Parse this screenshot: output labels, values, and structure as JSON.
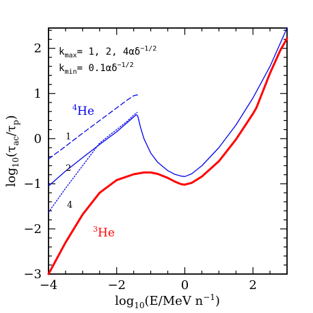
{
  "chart_data": {
    "type": "line",
    "xlabel": "log₁₀(E/MeV n⁻¹)",
    "ylabel": "log₁₀(τ_ac/τ_p)",
    "xlim": [
      -4,
      3
    ],
    "ylim": [
      -3,
      2.45
    ],
    "xticks": [
      -4,
      -2,
      0,
      2
    ],
    "yticks": [
      -3,
      -2,
      -1,
      0,
      1,
      2
    ],
    "xtick_labels": [
      "−4",
      "−2",
      "0",
      "2"
    ],
    "ytick_labels": [
      "−3",
      "−2",
      "−1",
      "0",
      "1",
      "2"
    ],
    "annotations": {
      "kmax": "k_max= 1, 2, 4αδ^{−1/2}",
      "kmin": "k_min= 0.1αδ^{−1/2}",
      "he4": "⁴He",
      "he3": "³He",
      "label_1": "1",
      "label_2": "2",
      "label_4": "4"
    },
    "series": [
      {
        "id": "he4_k1",
        "style": "dashed",
        "color": "#0000ee",
        "x": [
          -4,
          -3.5,
          -3,
          -2.5,
          -2,
          -1.7,
          -1.5,
          -1.4,
          -1.35
        ],
        "y": [
          -0.45,
          -0.17,
          0.12,
          0.4,
          0.68,
          0.85,
          0.95,
          0.97,
          0.93
        ]
      },
      {
        "id": "he4_k2",
        "style": "solid",
        "color": "#0000ee",
        "x": [
          -4,
          -3.5,
          -3,
          -2.5,
          -2,
          -1.7,
          -1.5,
          -1.42,
          -1.38,
          -1.3,
          -1.2,
          -1.0,
          -0.8,
          -0.5,
          -0.3,
          -0.1,
          0,
          0.2,
          0.5,
          1.0,
          1.5,
          2.0,
          2.5,
          3.0
        ],
        "y": [
          -1.05,
          -0.72,
          -0.42,
          -0.13,
          0.15,
          0.35,
          0.48,
          0.53,
          0.5,
          0.25,
          0.0,
          -0.32,
          -0.52,
          -0.71,
          -0.79,
          -0.83,
          -0.84,
          -0.78,
          -0.6,
          -0.2,
          0.3,
          0.9,
          1.6,
          2.45
        ]
      },
      {
        "id": "he4_k4",
        "style": "dotted",
        "color": "#0000ee",
        "x": [
          -4,
          -3.5,
          -3,
          -2.5,
          -2,
          -1.7,
          -1.5,
          -1.4
        ],
        "y": [
          -1.63,
          -1.1,
          -0.6,
          -0.1,
          0.2,
          0.38,
          0.52,
          0.58
        ]
      },
      {
        "id": "he3",
        "style": "solid",
        "color": "#ff0000",
        "x": [
          -4,
          -3.5,
          -3,
          -2.5,
          -2,
          -1.5,
          -1.2,
          -1.0,
          -0.8,
          -0.5,
          -0.3,
          -0.1,
          0,
          0.2,
          0.5,
          1.0,
          1.5,
          2.0,
          2.1,
          2.5,
          2.8,
          3.0
        ],
        "y": [
          -3.0,
          -2.3,
          -1.68,
          -1.2,
          -0.92,
          -0.79,
          -0.75,
          -0.75,
          -0.78,
          -0.87,
          -0.95,
          -1.01,
          -1.02,
          -0.98,
          -0.84,
          -0.5,
          -0.02,
          0.55,
          0.68,
          1.45,
          1.95,
          2.22
        ]
      }
    ]
  }
}
